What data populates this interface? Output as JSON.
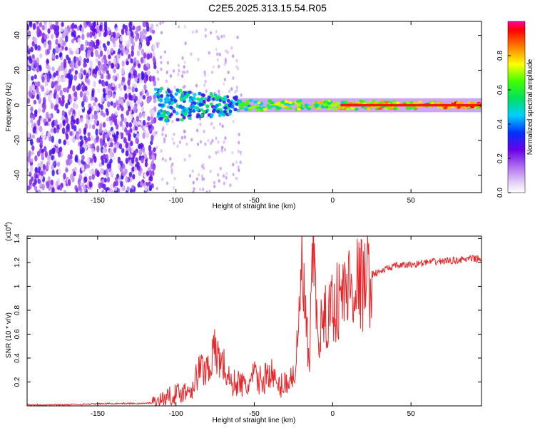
{
  "title": "C2E5.2025.313.15.54.R05",
  "chart_data": [
    {
      "type": "heatmap",
      "name": "spectrogram",
      "xlabel": "Height of straight line (km)",
      "ylabel": "Frequency (Hz)",
      "xlim": [
        -195,
        95
      ],
      "ylim": [
        -50,
        48
      ],
      "xticks": [
        -150,
        -100,
        -50,
        0,
        50
      ],
      "yticks": [
        -40,
        -20,
        0,
        20,
        40
      ],
      "colorbar": {
        "label": "Normalized spectral amplitude",
        "range": [
          0.0,
          1.0
        ],
        "ticks": [
          0.0,
          0.2,
          0.4,
          0.6,
          0.8
        ]
      },
      "regions": [
        {
          "description": "noise",
          "x_range": [
            -195,
            -113
          ],
          "freq_range": [
            -50,
            48
          ],
          "amplitude": 0.1
        },
        {
          "description": "signal onset",
          "x_range": [
            -113,
            -60
          ],
          "freq_range": [
            -10,
            10
          ],
          "amplitude": 0.3
        },
        {
          "description": "signal band",
          "x_range": [
            -60,
            95
          ],
          "freq_range": [
            -3,
            3
          ],
          "amplitude": 0.9
        }
      ]
    },
    {
      "type": "line",
      "name": "snr",
      "xlabel": "Height of straight line (km)",
      "ylabel": "SNR (10 * v/v)",
      "yscale_label": "(x10",
      "yscale_exp": "4",
      "xlim": [
        -195,
        95
      ],
      "ylim": [
        0,
        1.42
      ],
      "xticks": [
        -150,
        -100,
        -50,
        0,
        50
      ],
      "yticks": [
        0.2,
        0.4,
        0.6,
        0.8,
        1.0,
        1.2,
        1.4
      ],
      "color": "#e8262a",
      "series": [
        {
          "name": "SNR",
          "x": [
            -195,
            -170,
            -140,
            -120,
            -113,
            -105,
            -100,
            -95,
            -90,
            -85,
            -80,
            -75,
            -70,
            -65,
            -60,
            -55,
            -50,
            -45,
            -40,
            -35,
            -30,
            -25,
            -22,
            -20,
            -15,
            -12,
            -10,
            -5,
            0,
            5,
            10,
            15,
            20,
            25,
            30,
            35,
            40,
            50,
            60,
            70,
            80,
            90,
            95
          ],
          "y": [
            0.01,
            0.01,
            0.02,
            0.02,
            0.03,
            0.08,
            0.1,
            0.12,
            0.15,
            0.3,
            0.32,
            0.45,
            0.35,
            0.18,
            0.2,
            0.15,
            0.25,
            0.2,
            0.3,
            0.15,
            0.2,
            0.25,
            0.5,
            1.2,
            0.3,
            1.42,
            0.6,
            0.7,
            0.85,
            0.9,
            1.0,
            1.05,
            1.0,
            1.1,
            1.12,
            1.15,
            1.17,
            1.18,
            1.2,
            1.21,
            1.22,
            1.23,
            1.23
          ]
        }
      ]
    }
  ]
}
